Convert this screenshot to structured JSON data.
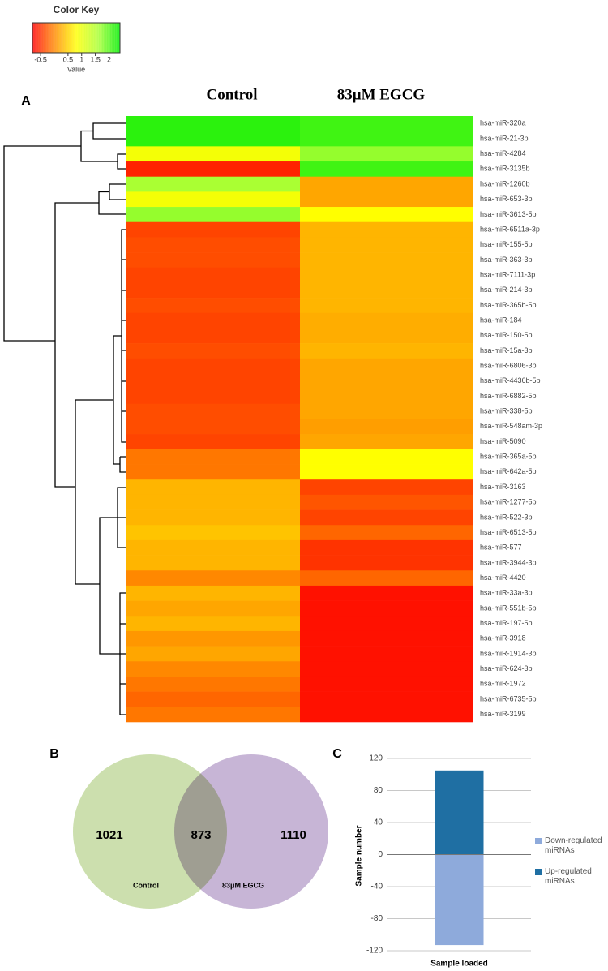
{
  "chart_data": [
    {
      "type": "heatmap",
      "panel": "A",
      "key_title": "Color Key",
      "key_xlabel": "Value",
      "xlim": [
        -0.8,
        2.4
      ],
      "xticks": [
        -0.5,
        0.5,
        1,
        1.5,
        2
      ],
      "colormap": [
        "#ff0000",
        "#ff8800",
        "#ffff00",
        "#aaff33",
        "#00ee00"
      ],
      "columns": [
        "Control",
        "83μM EGCG"
      ],
      "rows": [
        "hsa-miR-320a",
        "hsa-miR-21-3p",
        "hsa-miR-4284",
        "hsa-miR-3135b",
        "hsa-miR-1260b",
        "hsa-miR-653-3p",
        "hsa-miR-3613-5p",
        "hsa-miR-6511a-3p",
        "hsa-miR-155-5p",
        "hsa-miR-363-3p",
        "hsa-miR-7111-3p",
        "hsa-miR-214-3p",
        "hsa-miR-365b-5p",
        "hsa-miR-184",
        "hsa-miR-150-5p",
        "hsa-miR-15a-3p",
        "hsa-miR-6806-3p",
        "hsa-miR-4436b-5p",
        "hsa-miR-6882-5p",
        "hsa-miR-338-5p",
        "hsa-miR-548am-3p",
        "hsa-miR-5090",
        "hsa-miR-365a-5p",
        "hsa-miR-642a-5p",
        "hsa-miR-3163",
        "hsa-miR-1277-5p",
        "hsa-miR-522-3p",
        "hsa-miR-6513-5p",
        "hsa-miR-577",
        "hsa-miR-3944-3p",
        "hsa-miR-4420",
        "hsa-miR-33a-3p",
        "hsa-miR-551b-5p",
        "hsa-miR-197-5p",
        "hsa-miR-3918",
        "hsa-miR-1914-3p",
        "hsa-miR-624-3p",
        "hsa-miR-1972",
        "hsa-miR-6735-5p",
        "hsa-miR-3199"
      ],
      "values": [
        [
          2.2,
          2.1
        ],
        [
          2.2,
          2.1
        ],
        [
          0.9,
          1.7
        ],
        [
          -0.6,
          2.1
        ],
        [
          1.6,
          0.2
        ],
        [
          0.9,
          0.2
        ],
        [
          1.7,
          0.8
        ],
        [
          -0.4,
          0.3
        ],
        [
          -0.35,
          0.3
        ],
        [
          -0.35,
          0.3
        ],
        [
          -0.4,
          0.3
        ],
        [
          -0.4,
          0.3
        ],
        [
          -0.35,
          0.3
        ],
        [
          -0.4,
          0.25
        ],
        [
          -0.4,
          0.25
        ],
        [
          -0.35,
          0.3
        ],
        [
          -0.4,
          0.2
        ],
        [
          -0.4,
          0.2
        ],
        [
          -0.4,
          0.2
        ],
        [
          -0.35,
          0.2
        ],
        [
          -0.35,
          0.15
        ],
        [
          -0.4,
          0.2
        ],
        [
          -0.1,
          0.8
        ],
        [
          -0.1,
          0.8
        ],
        [
          0.3,
          -0.4
        ],
        [
          0.3,
          -0.3
        ],
        [
          0.3,
          -0.4
        ],
        [
          0.4,
          -0.2
        ],
        [
          0.3,
          -0.5
        ],
        [
          0.3,
          -0.5
        ],
        [
          0.0,
          -0.2
        ],
        [
          0.3,
          -0.7
        ],
        [
          0.2,
          -0.7
        ],
        [
          0.3,
          -0.7
        ],
        [
          0.1,
          -0.7
        ],
        [
          0.2,
          -0.7
        ],
        [
          0.0,
          -0.7
        ],
        [
          -0.1,
          -0.7
        ],
        [
          -0.2,
          -0.7
        ],
        [
          -0.1,
          -0.7
        ]
      ]
    },
    {
      "type": "venn",
      "panel": "B",
      "sets": [
        "Control",
        "83μM EGCG"
      ],
      "values": [
        1021,
        873,
        1110
      ],
      "colors": [
        "#c3d9a0",
        "#b9a3cc"
      ]
    },
    {
      "type": "bar",
      "panel": "C",
      "categories": [
        "Sample loaded"
      ],
      "ylabel": "Sample number",
      "ylim": [
        -120,
        120
      ],
      "yticks": [
        -120,
        -80,
        -40,
        0,
        40,
        80,
        120
      ],
      "grid": true,
      "series": [
        {
          "name": "Down-regulated miRNAs",
          "color": "#8eaadb",
          "values": [
            -113
          ]
        },
        {
          "name": "Up-regulated miRNAs",
          "color": "#1f6fa3",
          "values": [
            105
          ]
        }
      ]
    }
  ]
}
